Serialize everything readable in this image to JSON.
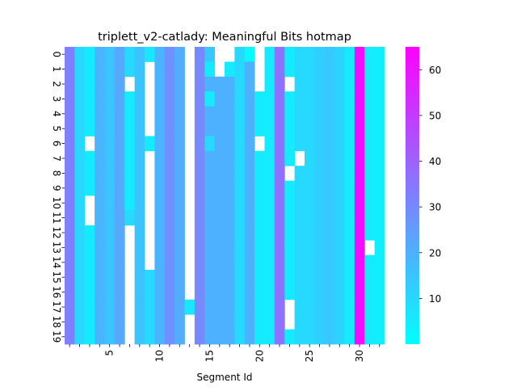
{
  "chart_data": {
    "type": "heatmap",
    "title": "triplett_v2-catlady: Meaningful Bits hotmap",
    "xlabel": "Segment Id",
    "ylabel": "",
    "columns": [
      1,
      2,
      3,
      4,
      5,
      6,
      7,
      8,
      9,
      10,
      11,
      12,
      13,
      14,
      15,
      16,
      17,
      18,
      19,
      20,
      21,
      22,
      23,
      24,
      25,
      26,
      27,
      28,
      29,
      30,
      31,
      32
    ],
    "rows": [
      0,
      1,
      2,
      3,
      4,
      5,
      6,
      7,
      8,
      9,
      10,
      11,
      12,
      13,
      14,
      15,
      16,
      17,
      18,
      19
    ],
    "x_tick_labels": [
      "5",
      "10",
      "15",
      "20",
      "25",
      "30"
    ],
    "x_tick_values": [
      5,
      10,
      15,
      20,
      25,
      30
    ],
    "colormap": "cool",
    "colorbar": {
      "min": 0,
      "max": 65,
      "ticks": [
        10,
        20,
        30,
        40,
        50,
        60
      ]
    },
    "values": [
      [
        33,
        10,
        5,
        19,
        15,
        22,
        10,
        15,
        6,
        19,
        28,
        21,
        null,
        30,
        14,
        null,
        null,
        10,
        1,
        null,
        5,
        36,
        5,
        10,
        10,
        12,
        14,
        11,
        5,
        62,
        5,
        4
      ],
      [
        33,
        10,
        5,
        19,
        15,
        22,
        10,
        15,
        null,
        19,
        28,
        21,
        null,
        30,
        5,
        null,
        5,
        10,
        20,
        null,
        5,
        36,
        5,
        10,
        10,
        12,
        14,
        11,
        5,
        62,
        5,
        4
      ],
      [
        33,
        10,
        5,
        19,
        15,
        22,
        null,
        15,
        null,
        19,
        28,
        21,
        null,
        30,
        20,
        20,
        20,
        10,
        20,
        null,
        5,
        36,
        null,
        10,
        10,
        12,
        14,
        11,
        5,
        62,
        5,
        4
      ],
      [
        33,
        10,
        5,
        19,
        15,
        22,
        5,
        15,
        null,
        19,
        28,
        21,
        null,
        30,
        5,
        20,
        20,
        10,
        20,
        5,
        5,
        36,
        5,
        10,
        10,
        12,
        14,
        11,
        5,
        62,
        5,
        4
      ],
      [
        33,
        10,
        5,
        19,
        15,
        22,
        5,
        15,
        null,
        19,
        28,
        21,
        null,
        30,
        20,
        20,
        20,
        10,
        20,
        5,
        5,
        36,
        5,
        10,
        10,
        12,
        14,
        11,
        5,
        62,
        5,
        4
      ],
      [
        33,
        10,
        5,
        19,
        15,
        22,
        5,
        15,
        null,
        19,
        28,
        21,
        null,
        30,
        20,
        20,
        20,
        10,
        20,
        5,
        5,
        36,
        5,
        10,
        10,
        12,
        14,
        11,
        5,
        62,
        5,
        4
      ],
      [
        33,
        10,
        null,
        19,
        15,
        22,
        5,
        15,
        5,
        19,
        28,
        21,
        null,
        30,
        10,
        20,
        20,
        10,
        20,
        null,
        5,
        36,
        5,
        10,
        10,
        12,
        14,
        11,
        5,
        62,
        5,
        4
      ],
      [
        33,
        10,
        5,
        19,
        15,
        22,
        5,
        15,
        null,
        19,
        28,
        21,
        null,
        30,
        20,
        20,
        20,
        10,
        20,
        5,
        5,
        36,
        5,
        null,
        10,
        12,
        14,
        11,
        5,
        62,
        5,
        4
      ],
      [
        33,
        10,
        5,
        19,
        15,
        22,
        5,
        15,
        null,
        19,
        28,
        21,
        null,
        30,
        20,
        20,
        20,
        10,
        20,
        5,
        5,
        36,
        null,
        10,
        10,
        12,
        14,
        11,
        5,
        62,
        5,
        4
      ],
      [
        33,
        10,
        5,
        19,
        15,
        22,
        5,
        15,
        null,
        19,
        28,
        21,
        null,
        30,
        20,
        20,
        20,
        10,
        20,
        5,
        5,
        36,
        5,
        10,
        10,
        12,
        14,
        11,
        5,
        62,
        5,
        4
      ],
      [
        33,
        10,
        null,
        19,
        15,
        22,
        5,
        15,
        null,
        19,
        28,
        21,
        null,
        30,
        20,
        20,
        20,
        10,
        20,
        5,
        5,
        36,
        5,
        10,
        10,
        12,
        14,
        11,
        5,
        62,
        5,
        4
      ],
      [
        33,
        10,
        null,
        19,
        15,
        22,
        10,
        15,
        null,
        19,
        28,
        21,
        null,
        30,
        20,
        20,
        20,
        10,
        20,
        5,
        5,
        36,
        5,
        10,
        10,
        12,
        14,
        11,
        5,
        62,
        5,
        4
      ],
      [
        33,
        10,
        5,
        19,
        15,
        22,
        null,
        15,
        null,
        19,
        28,
        21,
        null,
        30,
        20,
        20,
        20,
        10,
        20,
        5,
        5,
        36,
        5,
        10,
        10,
        12,
        14,
        11,
        5,
        62,
        5,
        4
      ],
      [
        33,
        10,
        5,
        19,
        15,
        22,
        null,
        15,
        null,
        19,
        28,
        21,
        null,
        30,
        20,
        20,
        20,
        10,
        20,
        5,
        5,
        36,
        5,
        10,
        10,
        12,
        14,
        11,
        5,
        62,
        null,
        4
      ],
      [
        33,
        10,
        5,
        19,
        15,
        22,
        null,
        15,
        null,
        19,
        28,
        21,
        null,
        30,
        20,
        20,
        20,
        10,
        20,
        5,
        5,
        36,
        5,
        10,
        10,
        12,
        14,
        11,
        5,
        62,
        5,
        4
      ],
      [
        33,
        10,
        5,
        19,
        15,
        22,
        null,
        15,
        10,
        19,
        28,
        21,
        null,
        30,
        20,
        20,
        20,
        10,
        20,
        5,
        5,
        36,
        5,
        10,
        10,
        12,
        14,
        11,
        5,
        62,
        5,
        4
      ],
      [
        33,
        10,
        5,
        19,
        15,
        22,
        null,
        15,
        10,
        19,
        28,
        21,
        null,
        30,
        20,
        20,
        20,
        10,
        20,
        5,
        5,
        36,
        5,
        10,
        10,
        12,
        14,
        11,
        5,
        62,
        5,
        4
      ],
      [
        33,
        10,
        5,
        19,
        15,
        22,
        null,
        15,
        10,
        19,
        28,
        21,
        6,
        30,
        20,
        20,
        20,
        10,
        20,
        5,
        5,
        36,
        null,
        10,
        10,
        12,
        14,
        11,
        5,
        62,
        5,
        4
      ],
      [
        33,
        10,
        5,
        19,
        15,
        22,
        null,
        15,
        10,
        19,
        28,
        21,
        null,
        30,
        20,
        20,
        20,
        10,
        20,
        5,
        5,
        36,
        null,
        10,
        10,
        12,
        14,
        11,
        5,
        62,
        5,
        4
      ],
      [
        33,
        10,
        5,
        19,
        15,
        22,
        null,
        15,
        10,
        19,
        28,
        21,
        null,
        30,
        20,
        20,
        20,
        10,
        20,
        5,
        5,
        36,
        5,
        10,
        10,
        12,
        14,
        11,
        5,
        62,
        5,
        4
      ]
    ]
  }
}
